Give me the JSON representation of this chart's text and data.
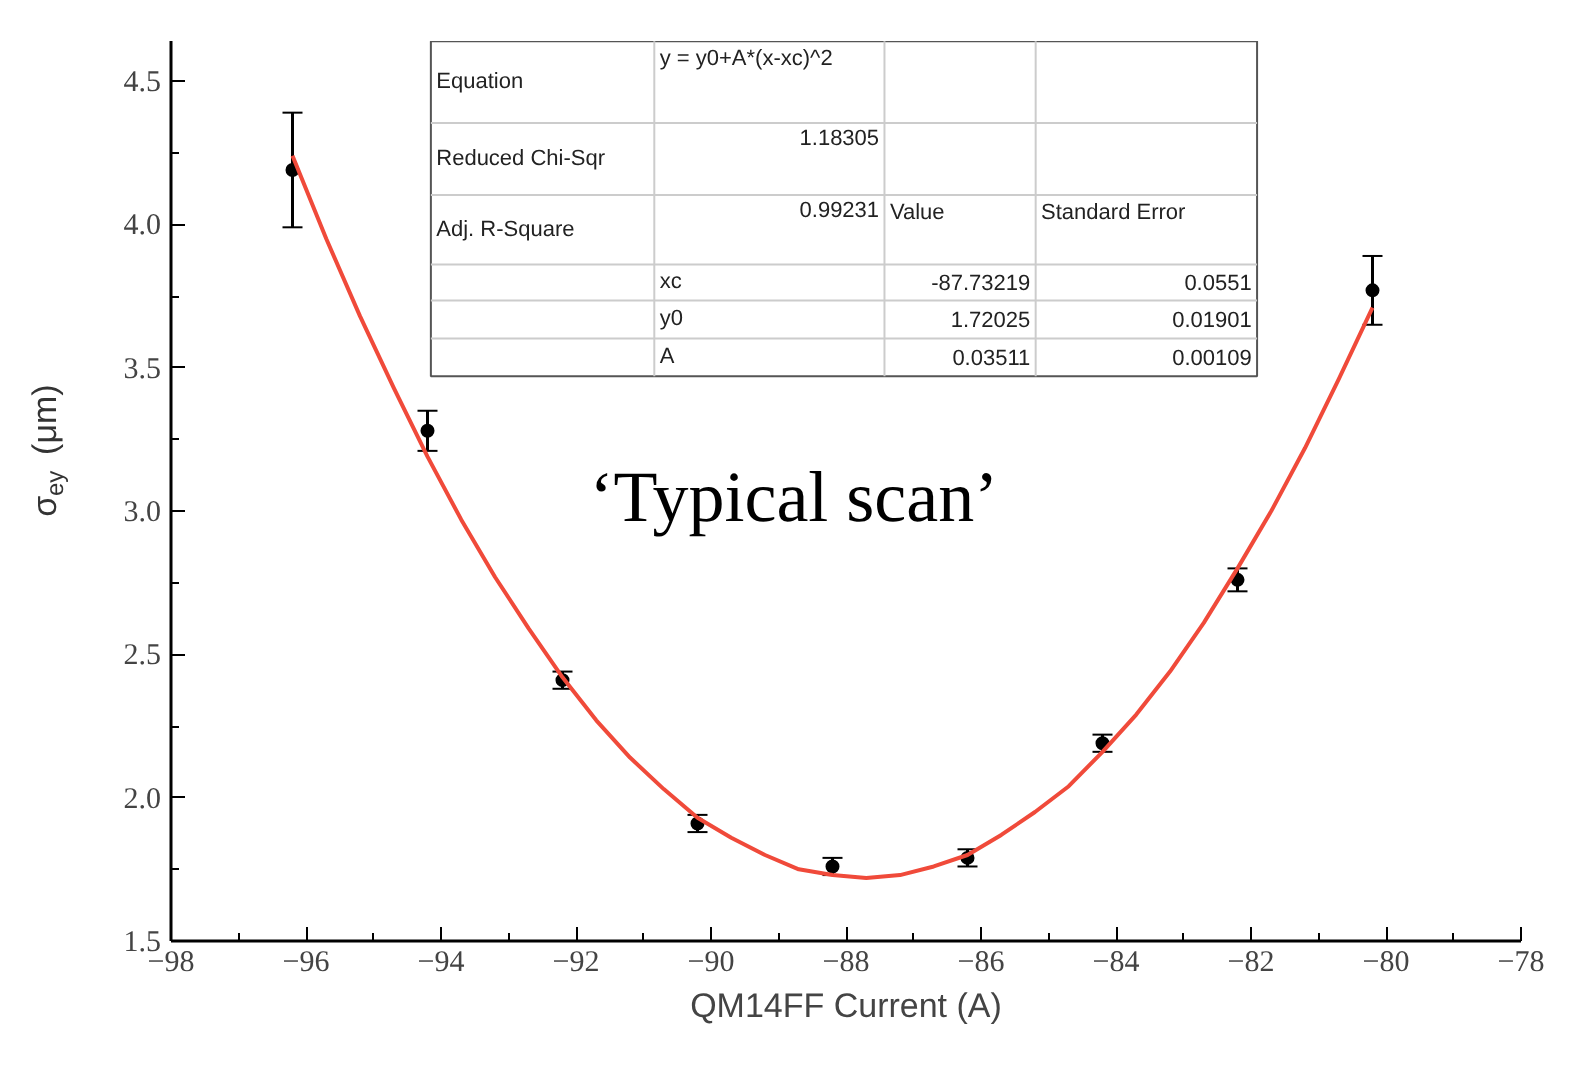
{
  "chart_data": {
    "type": "scatter",
    "xlabel": "QM14FF Current (A)",
    "ylabel": "σ$_{ey}$ (μm)",
    "grid": false,
    "xlim": [
      -98,
      -78
    ],
    "xticks": [
      -98,
      -96,
      -94,
      -92,
      -90,
      -88,
      -86,
      -84,
      -82,
      -80,
      -78
    ],
    "ylim": [
      1.5,
      4.64
    ],
    "yticks": [
      {
        "value": 1.5,
        "label": "1.5"
      },
      {
        "value": 2,
        "label": "2.0"
      },
      {
        "value": 2.5,
        "label": "2.5"
      },
      {
        "value": 3,
        "label": "3.0"
      },
      {
        "value": 3.5,
        "label": "3.5"
      },
      {
        "value": 4,
        "label": "4.0"
      },
      {
        "value": 4.5,
        "label": "4.5"
      }
    ],
    "series": [
      {
        "marker": "circle",
        "color": "#000000",
        "x": [
          -96.2,
          -94.2,
          -92.2,
          -90.2,
          -88.2,
          -86.2,
          -84.2,
          -82.2,
          -80.2
        ],
        "values": [
          4.19,
          3.28,
          2.41,
          1.91,
          1.76,
          1.79,
          2.19,
          2.76,
          3.77
        ],
        "errors": [
          0.2,
          0.07,
          0.03,
          0.03,
          0.03,
          0.03,
          0.03,
          0.04,
          0.12
        ]
      },
      {
        "type": "line",
        "color": "#f04a3a",
        "x": [
          -96.2,
          -95.7,
          -95.2,
          -94.7,
          -94.2,
          -93.7,
          -93.2,
          -92.7,
          -92.2,
          -91.7,
          -91.2,
          -90.7,
          -90.2,
          -89.7,
          -89.2,
          -88.7,
          -88.2,
          -87.7,
          -87.2,
          -86.7,
          -86.2,
          -85.7,
          -85.2,
          -84.7,
          -84.2,
          -83.7,
          -83.2,
          -82.7,
          -82.2,
          -81.7,
          -81.2,
          -80.7,
          -80.2
        ],
        "values": [
          4.24,
          3.95,
          3.68,
          3.43,
          3.19,
          2.97,
          2.77,
          2.59,
          2.42,
          2.27,
          2.14,
          2.03,
          1.93,
          1.86,
          1.8,
          1.75,
          1.73,
          1.72,
          1.73,
          1.76,
          1.8,
          1.87,
          1.95,
          2.04,
          2.16,
          2.29,
          2.44,
          2.61,
          2.8,
          3.0,
          3.22,
          3.46,
          3.71
        ]
      }
    ],
    "annotations": [
      "Equation",
      "y = y0+A*(x-xc)^2",
      "Reduced Chi-Sqr",
      "1.18305",
      "Adj. R-Square",
      "0.99231",
      "Value",
      "Standard Error",
      "xc",
      "-87.73219",
      "0.0551",
      "y0",
      "1.72025",
      "0.01901",
      "A",
      "0.03511",
      "0.00109",
      "‘Typical scan’"
    ]
  }
}
